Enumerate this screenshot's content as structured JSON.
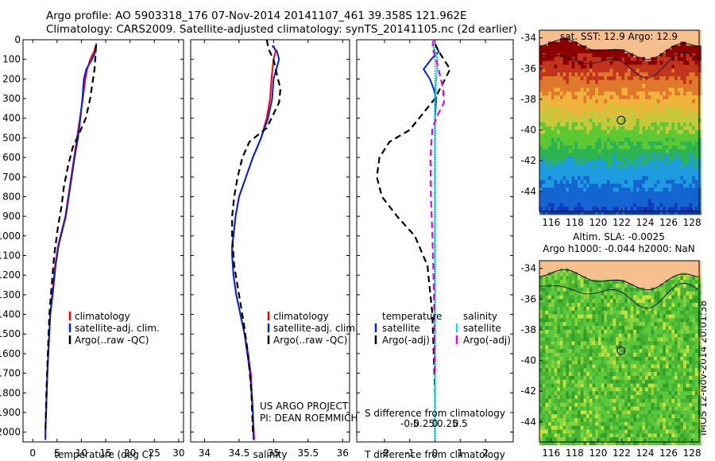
{
  "header": {
    "line1": "Argo profile: AO 5903318_176 07-Nov-2014 20141107_461 39.358S 121.962E",
    "line2": "Climatology: CARS2009. Satellite-adjusted climatology: synTS_20141105.nc (2d earlier)"
  },
  "footer_stamp": "IMOS 12-Nov-2014 20:01:38",
  "project_note": [
    "US ARGO PROJECT",
    "PI: DEAN ROEMMICH"
  ],
  "colors": {
    "climatology": "#ff0000",
    "satellite": "#0022ee",
    "argo": "#000000",
    "satellite_s": "#00e6e6",
    "argo_s": "#ee00ee",
    "land": "#f5c08e"
  },
  "chart_data": [
    {
      "id": "temperature",
      "type": "line",
      "xlabel": "temperature (deg C)",
      "ylabel": "",
      "xlim": [
        -2,
        31
      ],
      "ylim": [
        2050,
        0
      ],
      "xticks": [
        "0",
        "5",
        "10",
        "15",
        "20",
        "25",
        "30"
      ],
      "yticks": [
        "0",
        "100",
        "200",
        "300",
        "400",
        "500",
        "600",
        "700",
        "800",
        "900",
        "1000",
        "1100",
        "1200",
        "1300",
        "1400",
        "1500",
        "1600",
        "1700",
        "1800",
        "1900",
        "2000"
      ],
      "legend": [
        "climatology",
        "satellite-adj. clim.",
        "Argo(..raw -QC)"
      ],
      "series": [
        {
          "name": "climatology",
          "style": "solid",
          "color": "#ff0000",
          "x": [
            13.1,
            12.6,
            11.8,
            11.2,
            10.8,
            10.3,
            9.7,
            9.1,
            8.5,
            7.9,
            7.3,
            6.7,
            6.2,
            5.2,
            4.6,
            4.0,
            3.6,
            3.3,
            3.0,
            2.8,
            2.6,
            2.6
          ],
          "y": [
            20,
            60,
            100,
            150,
            200,
            300,
            400,
            500,
            600,
            700,
            800,
            900,
            950,
            1050,
            1150,
            1300,
            1400,
            1550,
            1700,
            1850,
            2000,
            2040
          ]
        },
        {
          "name": "satellite-adj. clim.",
          "style": "solid",
          "color": "#0022ee",
          "x": [
            13.1,
            12.9,
            12.2,
            11.0,
            10.5,
            10.2,
            9.8,
            9.3,
            8.6,
            8.0,
            7.4,
            6.8,
            6.3,
            5.3,
            4.7,
            4.1,
            3.6,
            3.3,
            3.0,
            2.8,
            2.6,
            2.6
          ],
          "y": [
            20,
            60,
            100,
            150,
            200,
            300,
            400,
            500,
            600,
            700,
            800,
            900,
            950,
            1050,
            1150,
            1300,
            1400,
            1550,
            1700,
            1850,
            2000,
            2040
          ]
        },
        {
          "name": "Argo(..raw -QC)",
          "style": "dashed",
          "color": "#000000",
          "x": [
            13.0,
            12.9,
            12.7,
            12.4,
            11.8,
            10.9,
            9.5,
            8.2,
            7.2,
            6.4,
            5.9,
            5.2,
            4.4,
            3.9,
            3.4,
            3.1,
            2.8,
            2.6
          ],
          "y": [
            30,
            80,
            150,
            200,
            300,
            400,
            480,
            550,
            650,
            750,
            850,
            950,
            1100,
            1250,
            1400,
            1600,
            1800,
            2000
          ]
        }
      ]
    },
    {
      "id": "salinity",
      "type": "line",
      "xlabel": "salinity",
      "ylabel": "",
      "xlim": [
        33.8,
        36.1
      ],
      "ylim": [
        2050,
        0
      ],
      "xticks": [
        "34",
        "34.5",
        "35",
        "35.5",
        "36"
      ],
      "legend": [
        "climatology",
        "satellite-adj. clim.",
        "Argo(..raw -QC)"
      ],
      "series": [
        {
          "name": "climatology",
          "style": "solid",
          "color": "#ff0000",
          "x": [
            35.0,
            35.03,
            35.0,
            34.97,
            34.95,
            34.9,
            34.82,
            34.7,
            34.6,
            34.5,
            34.45,
            34.42,
            34.4,
            34.4,
            34.42,
            34.46,
            34.52,
            34.58,
            34.63,
            34.67,
            34.7,
            34.72
          ],
          "y": [
            30,
            60,
            100,
            200,
            300,
            400,
            500,
            600,
            700,
            800,
            900,
            1000,
            1050,
            1100,
            1200,
            1300,
            1400,
            1500,
            1600,
            1700,
            1900,
            2040
          ]
        },
        {
          "name": "satellite-adj. clim.",
          "style": "solid",
          "color": "#0022ee",
          "x": [
            34.98,
            35.05,
            35.08,
            35.0,
            34.98,
            34.92,
            34.82,
            34.7,
            34.6,
            34.5,
            34.45,
            34.42,
            34.4,
            34.4,
            34.42,
            34.46,
            34.52,
            34.58,
            34.62,
            34.66,
            34.7,
            34.71
          ],
          "y": [
            30,
            60,
            100,
            200,
            300,
            400,
            500,
            600,
            700,
            800,
            900,
            1000,
            1050,
            1100,
            1200,
            1300,
            1400,
            1500,
            1600,
            1700,
            1900,
            2040
          ]
        },
        {
          "name": "Argo(..raw -QC)",
          "style": "dashed",
          "color": "#000000",
          "x": [
            34.9,
            34.93,
            35.0,
            35.05,
            35.1,
            35.08,
            34.9,
            34.65,
            34.55,
            34.48,
            34.43,
            34.4,
            34.4,
            34.43,
            34.5,
            34.57,
            34.63,
            34.68,
            34.7
          ],
          "y": [
            0,
            50,
            100,
            180,
            250,
            320,
            450,
            520,
            600,
            700,
            800,
            900,
            1000,
            1150,
            1300,
            1450,
            1600,
            1800,
            2000
          ]
        }
      ]
    },
    {
      "id": "difference",
      "type": "line",
      "xlabel": "T difference from climatology",
      "xlabel2": "S difference from climatology",
      "xlim": [
        -3.1,
        3.1
      ],
      "ylim": [
        2050,
        0
      ],
      "xticks": [
        "-2",
        "-1",
        "0",
        "1",
        "2"
      ],
      "xticks2": [
        "-0.5",
        "-0.25",
        "0",
        "0.25",
        "0.5"
      ],
      "legend_titles": [
        "temperature",
        "salinity"
      ],
      "legend": [
        "satellite",
        "Argo(-adj)",
        "satellite",
        "Argo(-adj)"
      ],
      "series": [
        {
          "name": "satellite",
          "group": "temperature",
          "style": "solid",
          "color": "#0022ee",
          "x": [
            0.0,
            0.15,
            -0.15,
            -0.45,
            -0.2,
            -0.05,
            0.05,
            0.0,
            0.0,
            0.0,
            0.0,
            0.0,
            0.0,
            0.0
          ],
          "y": [
            20,
            60,
            100,
            150,
            200,
            250,
            300,
            400,
            600,
            800,
            1000,
            1400,
            1800,
            2040
          ]
        },
        {
          "name": "Argo(-adj)",
          "group": "temperature",
          "style": "dashed",
          "color": "#000000",
          "x": [
            0.0,
            0.15,
            0.35,
            0.6,
            0.0,
            -1.0,
            -1.8,
            -2.2,
            -2.3,
            -2.1,
            -1.5,
            -0.8,
            -0.3,
            -0.1,
            0.0
          ],
          "y": [
            20,
            60,
            100,
            150,
            300,
            460,
            520,
            600,
            700,
            800,
            900,
            1000,
            1150,
            1400,
            1800
          ]
        },
        {
          "name": "satellite",
          "group": "salinity",
          "style": "solid",
          "color": "#00e6e6",
          "x": [
            -0.05,
            0.05,
            0.0,
            0.0,
            0.0,
            0.0,
            0.0
          ],
          "y": [
            20,
            100,
            300,
            600,
            1000,
            1500,
            2040
          ]
        },
        {
          "name": "Argo(-adj)",
          "group": "salinity",
          "style": "dashed",
          "color": "#ee00ee",
          "x": [
            -0.03,
            -0.05,
            0.02,
            0.08,
            0.16,
            0.18,
            0.06,
            -0.05,
            -0.09,
            -0.08,
            -0.05,
            -0.02,
            0.0
          ],
          "y": [
            0,
            40,
            100,
            160,
            250,
            320,
            380,
            450,
            600,
            800,
            1000,
            1300,
            1700
          ]
        }
      ]
    },
    {
      "id": "sst-map",
      "type": "heatmap",
      "title": "sat. SST: 12.9 Argo: 12.9",
      "xticks": [
        "116",
        "118",
        "120",
        "122",
        "124",
        "126",
        "128"
      ],
      "yticks": [
        "-34",
        "-36",
        "-38",
        "-40",
        "-42",
        "-44"
      ],
      "xlim": [
        115.0,
        128.6
      ],
      "ylim": [
        -45.3,
        -33.5
      ],
      "marker": {
        "lon": 121.962,
        "lat": -39.358
      }
    },
    {
      "id": "sla-map",
      "type": "heatmap",
      "title_line1": "Altim. SLA: -0.0025",
      "title_line2": "Argo h1000: -0.044 h2000: NaN",
      "xticks": [
        "116",
        "118",
        "120",
        "122",
        "124",
        "126",
        "128"
      ],
      "yticks": [
        "-34",
        "-36",
        "-38",
        "-40",
        "-42",
        "-44"
      ],
      "xlim": [
        115.0,
        128.6
      ],
      "ylim": [
        -45.3,
        -33.5
      ],
      "marker": {
        "lon": 121.962,
        "lat": -39.358
      }
    }
  ]
}
